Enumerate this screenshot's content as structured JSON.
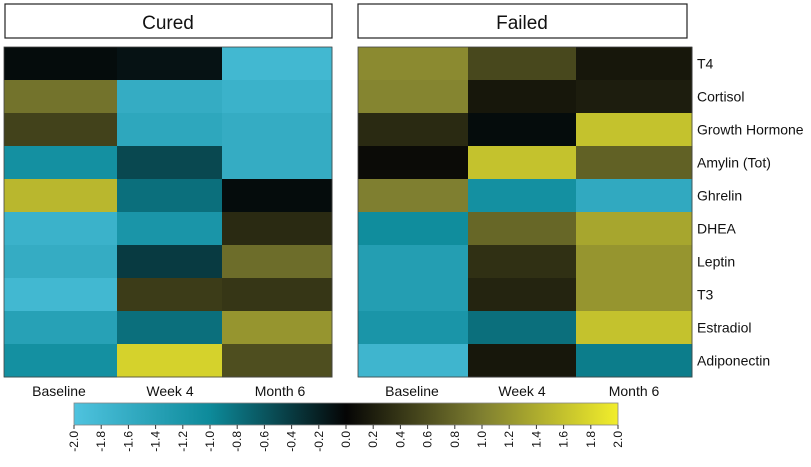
{
  "chart_data": {
    "type": "heatmap",
    "panels": [
      {
        "title": "Cured",
        "columns": [
          "Baseline",
          "Week 4",
          "Month 6"
        ],
        "values": [
          [
            -0.05,
            -0.1,
            -1.8
          ],
          [
            0.9,
            -1.6,
            -1.7
          ],
          [
            0.5,
            -1.5,
            -1.6
          ],
          [
            -1.1,
            -0.5,
            -1.6
          ],
          [
            1.5,
            -0.8,
            -0.05
          ],
          [
            -1.7,
            -1.2,
            0.3
          ],
          [
            -1.6,
            -0.4,
            0.85
          ],
          [
            -1.8,
            0.45,
            0.4
          ],
          [
            -1.4,
            -0.8,
            1.2
          ],
          [
            -1.1,
            1.75,
            0.6
          ]
        ]
      },
      {
        "title": "Failed",
        "columns": [
          "Baseline",
          "Week 4",
          "Month 6"
        ],
        "values": [
          [
            1.1,
            0.55,
            0.15
          ],
          [
            1.05,
            0.15,
            0.2
          ],
          [
            0.3,
            -0.05,
            1.6
          ],
          [
            0.05,
            1.6,
            0.75
          ],
          [
            1.0,
            -1.1,
            -1.55
          ],
          [
            -1.05,
            0.8,
            1.35
          ],
          [
            -1.35,
            0.35,
            1.2
          ],
          [
            -1.35,
            0.25,
            1.2
          ],
          [
            -1.2,
            -0.8,
            1.6
          ],
          [
            -1.75,
            0.15,
            -0.9
          ]
        ]
      }
    ],
    "rows": [
      "T4",
      "Cortisol",
      "Growth Hormone",
      "Amylin (Tot)",
      "Ghrelin",
      "DHEA",
      "Leptin",
      "T3",
      "Estradiol",
      "Adiponectin"
    ],
    "colorbar": {
      "range": [
        -2.0,
        2.0
      ],
      "ticks": [
        "-2.0",
        "-1.8",
        "-1.6",
        "-1.4",
        "-1.2",
        "-1.0",
        "-0.8",
        "-0.6",
        "-0.4",
        "-0.2",
        "0.0",
        "0.2",
        "0.4",
        "0.6",
        "0.8",
        "1.0",
        "1.2",
        "1.4",
        "1.6",
        "1.8",
        "2.0"
      ],
      "colors": {
        "low": "#4fc3df",
        "mid_low": "#0d8a9a",
        "zero": "#050505",
        "mid_high": "#7f7f30",
        "high": "#f2ee2b"
      }
    }
  }
}
